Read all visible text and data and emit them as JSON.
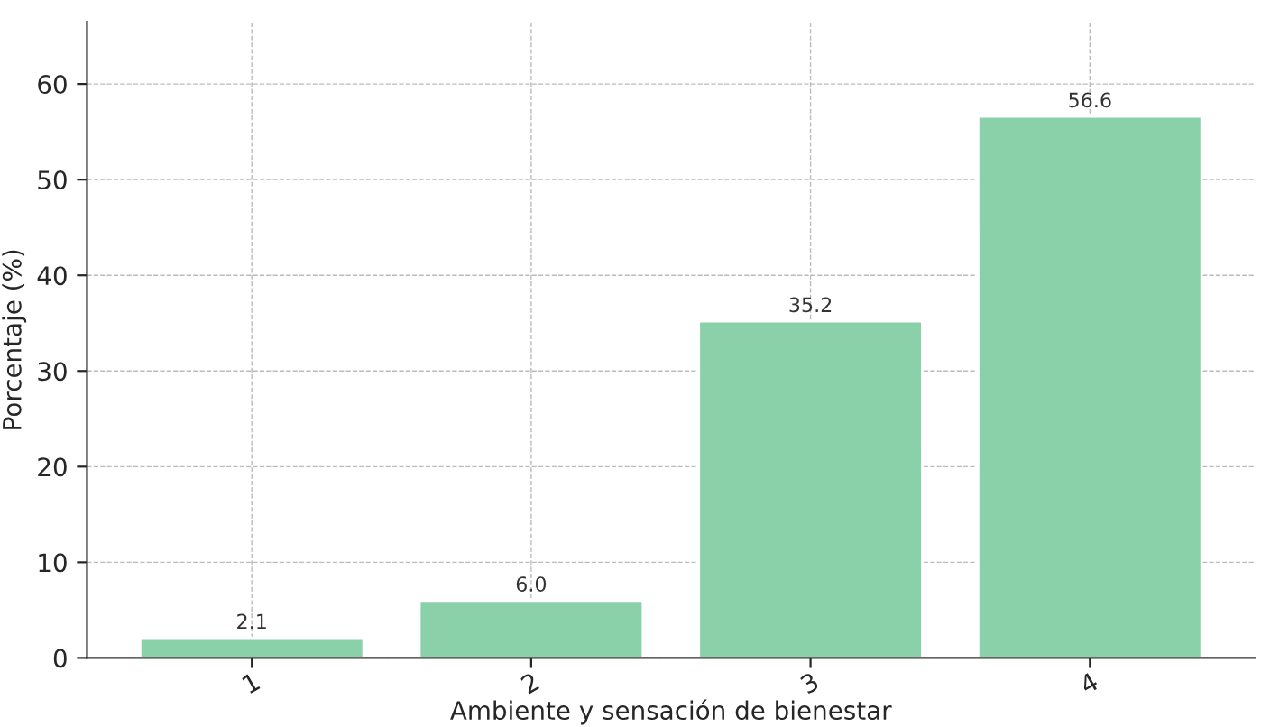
{
  "chart_data": {
    "type": "bar",
    "xlabel": "Ambiente y sensación de bienestar",
    "ylabel": "Porcentaje (%)",
    "categories": [
      "1",
      "2",
      "3",
      "4"
    ],
    "values": [
      2.1,
      6.0,
      35.2,
      56.6
    ],
    "color": "#8ad1aa",
    "ylim": [
      0,
      66.5
    ],
    "yticks": [
      0,
      10,
      20,
      30,
      40,
      50,
      60
    ],
    "value_labels": [
      "2.1",
      "6.0",
      "35.2",
      "56.6"
    ],
    "grid": true
  }
}
